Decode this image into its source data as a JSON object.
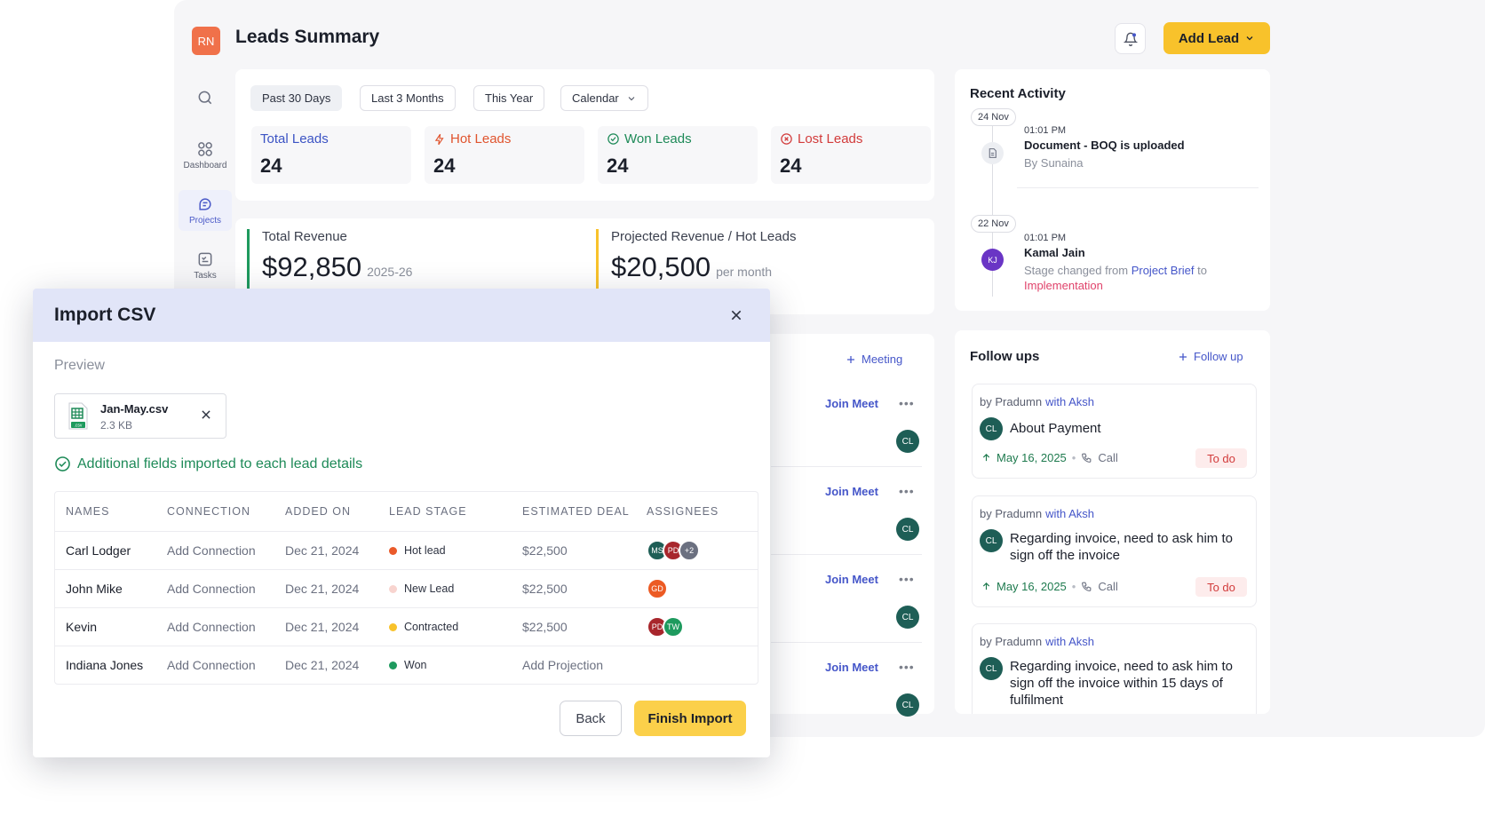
{
  "header": {
    "logo_initials": "RN",
    "title": "Leads Summary",
    "add_lead_label": "Add Lead"
  },
  "sidebar": {
    "items": [
      {
        "label": "",
        "icon": "search-icon"
      },
      {
        "label": "Dashboard",
        "icon": "grid-icon"
      },
      {
        "label": "Projects",
        "icon": "projects-icon",
        "active": true
      },
      {
        "label": "Tasks",
        "icon": "tasks-icon"
      }
    ]
  },
  "filters": [
    "Past 30 Days",
    "Last 3 Months",
    "This Year",
    "Calendar"
  ],
  "stats": [
    {
      "label": "Total Leads",
      "value": "24",
      "color": "#3b53c4"
    },
    {
      "label": "Hot Leads",
      "value": "24",
      "color": "#e0542e"
    },
    {
      "label": "Won Leads",
      "value": "24",
      "color": "#1e8a58"
    },
    {
      "label": "Lost Leads",
      "value": "24",
      "color": "#d23b3b"
    }
  ],
  "revenue": {
    "total_label": "Total Revenue",
    "total_value": "$92,850",
    "total_sub": "2025-26",
    "projected_label": "Projected Revenue / Hot Leads",
    "projected_value": "$20,500",
    "projected_sub": "per month"
  },
  "meetings": {
    "add_label": "Meeting",
    "join_label": "Join Meet",
    "avatar": "CL",
    "count": 4
  },
  "recent_activity": {
    "title": "Recent Activity",
    "entries": [
      {
        "date": "24 Nov",
        "time": "01:01 PM",
        "head": "Document - BOQ is uploaded",
        "sub": "By Sunaina"
      },
      {
        "date": "22 Nov",
        "time": "01:01 PM",
        "head": "Kamal Jain",
        "avatar": "KJ",
        "sub_prefix": "Stage changed from",
        "from": "Project Brief",
        "to_word": "to",
        "to": "Implementation"
      }
    ]
  },
  "follow_ups": {
    "title": "Follow ups",
    "add_label": "Follow up",
    "cards": [
      {
        "by": "by Pradumn",
        "with": "with Aksh",
        "avatar": "CL",
        "text": "About Payment",
        "date": "May 16, 2025",
        "type": "Call",
        "status": "To do"
      },
      {
        "by": "by Pradumn",
        "with": "with Aksh",
        "avatar": "CL",
        "text": "Regarding invoice, need to ask him to sign off the invoice",
        "date": "May 16, 2025",
        "type": "Call",
        "status": "To do"
      },
      {
        "by": "by Pradumn",
        "with": "with Aksh",
        "avatar": "CL",
        "text": "Regarding invoice, need to ask him to sign off the invoice within 15 days of fulfilment"
      }
    ]
  },
  "modal": {
    "title": "Import CSV",
    "preview_label": "Preview",
    "file_name": "Jan-May.csv",
    "file_size": "2.3 KB",
    "file_badge": ".csv",
    "success_text": "Additional fields imported to each lead details",
    "columns": [
      "NAMES",
      "CONNECTION",
      "ADDED ON",
      "LEAD STAGE",
      "ESTIMATED DEAL",
      "ASSIGNEES"
    ],
    "rows": [
      {
        "name": "Carl Lodger",
        "connection": "Add Connection",
        "added": "Dec 21, 2024",
        "stage": "Hot lead",
        "stage_color": "#ea5a2a",
        "deal": "$22,500",
        "assignees": [
          {
            "i": "MS",
            "c": "#1e5e56"
          },
          {
            "i": "PD",
            "c": "#a8262c"
          },
          {
            "i": "+2",
            "c": "#6b7080"
          }
        ]
      },
      {
        "name": "John Mike",
        "connection": "Add Connection",
        "added": "Dec 21, 2024",
        "stage": "New Lead",
        "stage_color": "#f8d4cf",
        "deal": "$22,500",
        "assignees": [
          {
            "i": "GD",
            "c": "#ec5a23"
          }
        ]
      },
      {
        "name": "Kevin",
        "connection": "Add Connection",
        "added": "Dec 21, 2024",
        "stage": "Contracted",
        "stage_color": "#f8c22b",
        "deal": "$22,500",
        "assignees": [
          {
            "i": "PD",
            "c": "#a8262c"
          },
          {
            "i": "TW",
            "c": "#1e9a5e"
          }
        ]
      },
      {
        "name": "Indiana Jones",
        "connection": "Add Connection",
        "added": "Dec 21, 2024",
        "stage": "Won",
        "stage_color": "#1e9a5e",
        "deal": "Add Projection",
        "assignees": []
      }
    ],
    "back_label": "Back",
    "finish_label": "Finish Import"
  }
}
